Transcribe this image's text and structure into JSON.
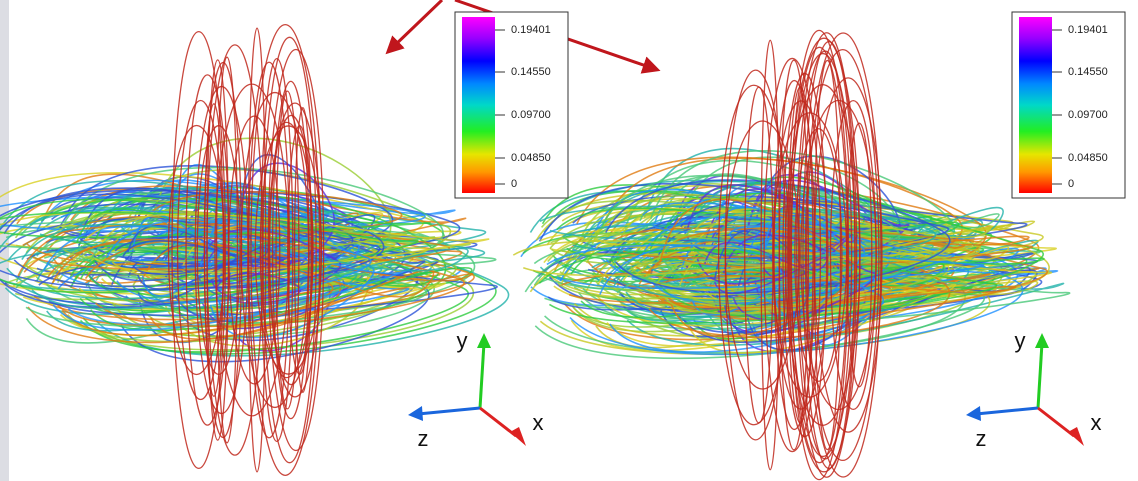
{
  "panels": [
    {
      "colorbar": {
        "ticks": [
          "0.19401",
          "0.14550",
          "0.09700",
          "0.04850",
          "0"
        ]
      },
      "axes": {
        "x": "x",
        "y": "y",
        "z": "z"
      }
    },
    {
      "colorbar": {
        "ticks": [
          "0.19401",
          "0.14550",
          "0.09700",
          "0.04850",
          "0"
        ]
      },
      "axes": {
        "x": "x",
        "y": "y",
        "z": "z"
      }
    }
  ]
}
